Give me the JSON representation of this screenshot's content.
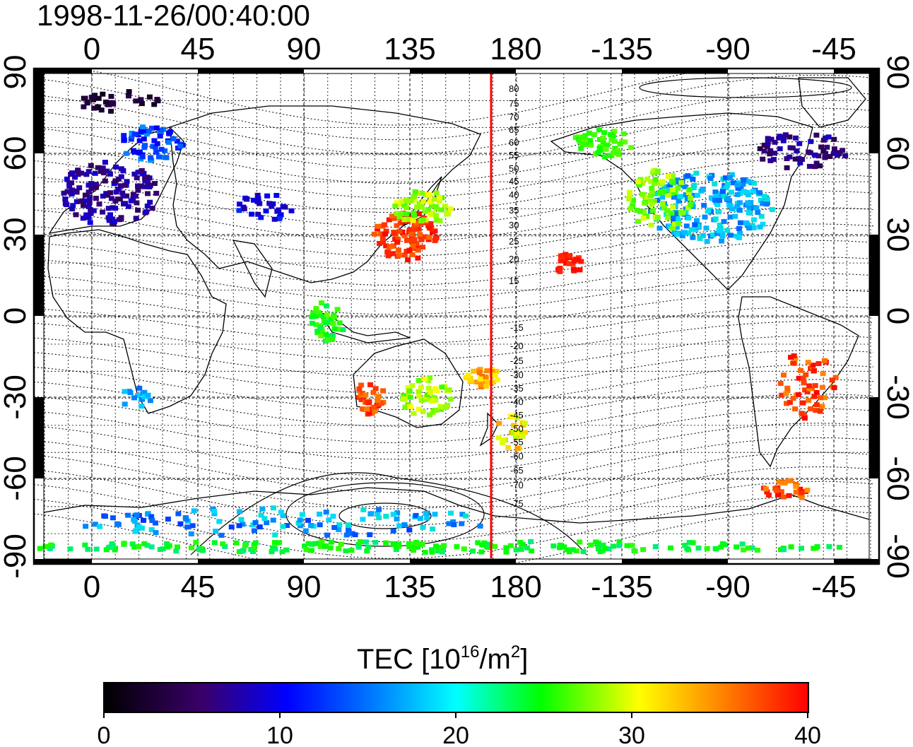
{
  "title": "1998-11-26/00:40:00",
  "axes": {
    "lon_top": [
      "0",
      "45",
      "90",
      "135",
      "180",
      "-135",
      "-90",
      "-45"
    ],
    "lon_bottom": [
      "0",
      "45",
      "90",
      "135",
      "180",
      "-135",
      "-90",
      "-45"
    ],
    "lat_left": [
      "90",
      "60",
      "30",
      "0",
      "-30",
      "-60",
      "-90"
    ],
    "lat_right": [
      "90",
      "60",
      "30",
      "0",
      "-30",
      "-60",
      "-90"
    ]
  },
  "contour_labels": {
    "north": [
      "80",
      "75",
      "70",
      "65",
      "60",
      "55",
      "50",
      "45",
      "40",
      "35",
      "30",
      "25",
      "20",
      "15"
    ],
    "south": [
      "-15",
      "-20",
      "-25",
      "-30",
      "-35",
      "-40",
      "-45",
      "-50",
      "-55",
      "-60",
      "-65",
      "-70",
      "-75"
    ]
  },
  "colorbar": {
    "title": "TEC  [10",
    "title_sup1": "16",
    "title_mid": "/m",
    "title_sup2": "2",
    "title_end": "]",
    "ticks": [
      "0",
      "10",
      "20",
      "30",
      "40"
    ],
    "min": 0,
    "max": 40,
    "stops": [
      "#000000",
      "#3a006a",
      "#0000ff",
      "#00ffff",
      "#00ff00",
      "#ffff00",
      "#ff0000"
    ]
  },
  "colors": {
    "frame": "#000000",
    "terminator_line": "#ff0000",
    "coastline": "#000000"
  }
}
